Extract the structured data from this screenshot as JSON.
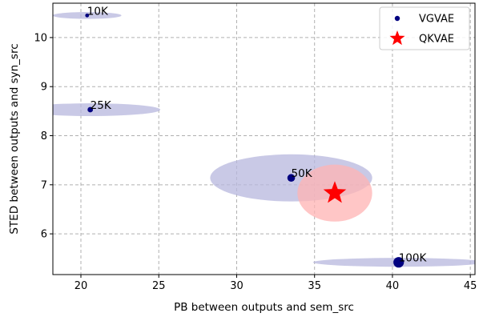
{
  "chart_data": {
    "type": "scatter",
    "xlabel": "PB between outputs and sem_src",
    "ylabel": "STED between outputs and syn_src",
    "xlim": [
      18.2,
      45.3
    ],
    "ylim": [
      5.17,
      10.7
    ],
    "xticks": [
      20,
      25,
      30,
      35,
      40,
      45
    ],
    "yticks": [
      6,
      7,
      8,
      9,
      10
    ],
    "grid": true,
    "legend_position": "top-right",
    "series": [
      {
        "name": "VGVAE",
        "color": "#000080",
        "marker": "circle",
        "ellipse_color": "#b7b7dd",
        "points": [
          {
            "label": "10K",
            "x": 20.4,
            "y": 10.45,
            "x_spread": 2.2,
            "y_spread": 0.07,
            "marker_size": 2.4
          },
          {
            "label": "25K",
            "x": 20.6,
            "y": 8.53,
            "x_spread": 4.5,
            "y_spread": 0.13,
            "marker_size": 3.4
          },
          {
            "label": "50K",
            "x": 33.5,
            "y": 7.14,
            "x_spread": 5.2,
            "y_spread": 0.48,
            "marker_size": 4.8
          },
          {
            "label": "100K",
            "x": 40.4,
            "y": 5.42,
            "x_spread": 5.5,
            "y_spread": 0.09,
            "marker_size": 6.6
          }
        ]
      },
      {
        "name": "QKVAE",
        "color": "#ff0000",
        "marker": "star",
        "ellipse_color": "#ffb3b3",
        "points": [
          {
            "label": "",
            "x": 36.3,
            "y": 6.83,
            "x_spread": 2.4,
            "y_spread": 0.58,
            "marker_size": 15
          }
        ]
      }
    ]
  }
}
